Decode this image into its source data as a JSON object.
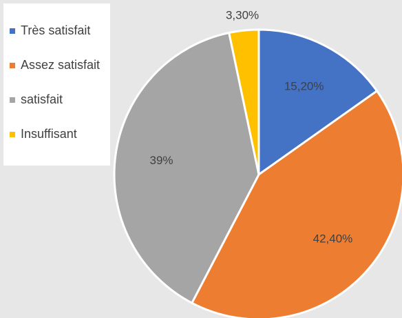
{
  "chart_data": {
    "type": "pie",
    "categories": [
      "Très satisfait",
      "Assez satisfait",
      "satisfait",
      "Insuffisant"
    ],
    "values": [
      15.2,
      42.4,
      39,
      3.3
    ],
    "value_labels": [
      "15,20%",
      "42,40%",
      "39%",
      "3,30%"
    ],
    "colors": [
      "#4472c4",
      "#ed7d31",
      "#a5a5a5",
      "#ffc000"
    ]
  }
}
